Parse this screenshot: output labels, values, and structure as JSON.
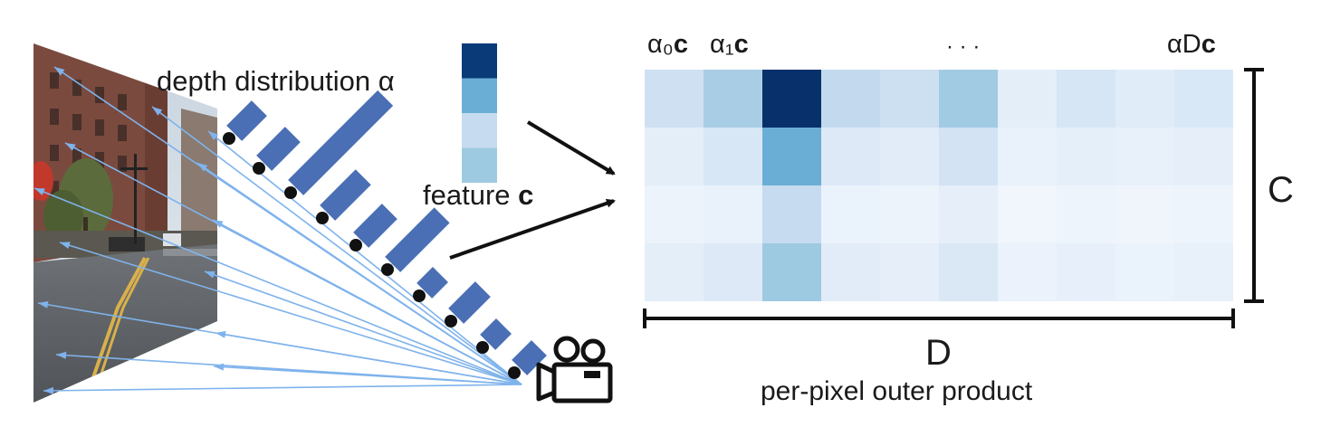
{
  "labels": {
    "depth_distribution": "depth distribution α",
    "feature_prefix": "feature ",
    "feature_symbol": "c",
    "alpha0": "α₀",
    "alpha1": "α₁",
    "alphaD": "αD",
    "c_symbol": "c",
    "ellipsis": "· · ·",
    "C": "C",
    "D": "D",
    "caption": "per-pixel outer product"
  },
  "icons": {
    "camera": "movie-camera-icon"
  },
  "colors": {
    "depth_bar": "#4a6fb5",
    "ray": "#7fb3ec",
    "dark_blue": "#08306b",
    "black": "#111111"
  },
  "feature_vector": [
    "#0b3a78",
    "#6aaed6",
    "#c6dbef",
    "#9ecae1"
  ],
  "depth_bars": [
    0.28,
    0.32,
    1.0,
    0.4,
    0.32,
    0.55,
    0.18,
    0.3,
    0.18,
    0.22
  ],
  "grid_colors": [
    [
      "#cfe0f2",
      "#a9cde5",
      "#08306b",
      "#c3d9ee",
      "#cde0f2",
      "#a0cbe3",
      "#e4eef9",
      "#d6e6f5",
      "#e0ecf8",
      "#d9e8f6"
    ],
    [
      "#e3eef9",
      "#d8e7f6",
      "#6aaed6",
      "#dde9f7",
      "#e1ecf8",
      "#d3e3f4",
      "#e9f1fb",
      "#e5eff9",
      "#e8f0fa",
      "#e6eff9"
    ],
    [
      "#ecf3fb",
      "#e9f1fb",
      "#c6dbef",
      "#eaf2fb",
      "#ecf3fb",
      "#e6eff9",
      "#f0f6fc",
      "#eef4fc",
      "#f0f5fc",
      "#eef4fc"
    ],
    [
      "#e4eef9",
      "#dee9f7",
      "#9ecae1",
      "#e2ecf8",
      "#e5eef9",
      "#dae7f5",
      "#ebf2fb",
      "#e7f0fa",
      "#eaf2fb",
      "#e8f0fa"
    ]
  ]
}
